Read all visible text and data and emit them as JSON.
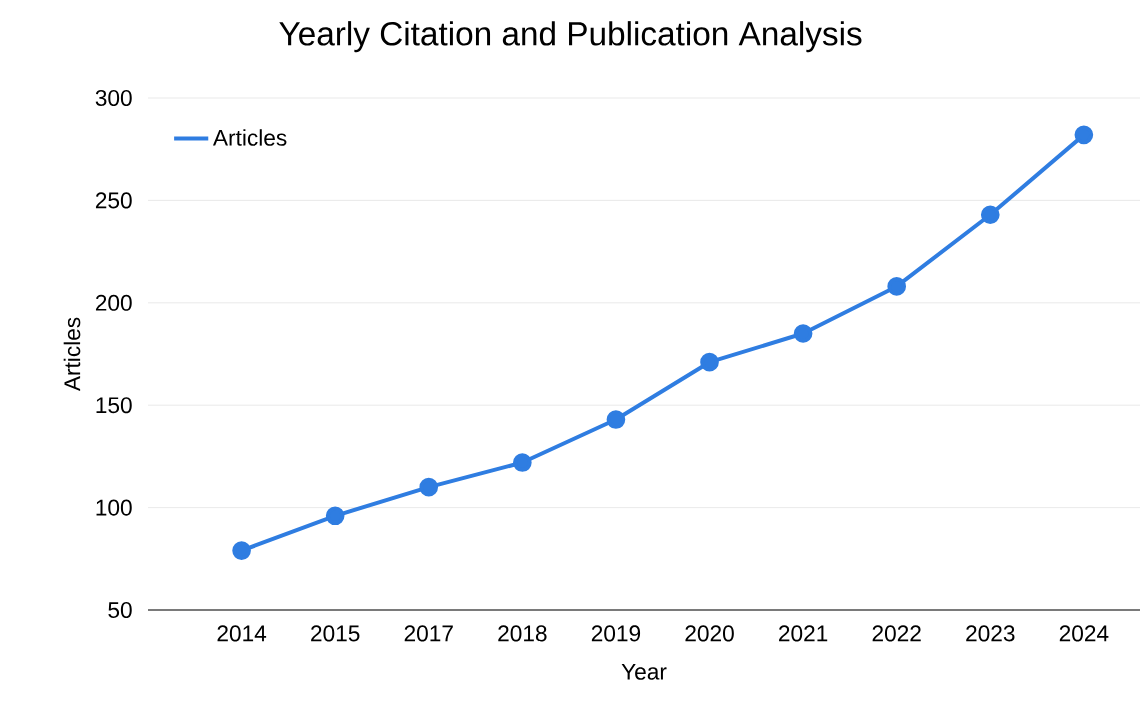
{
  "chart_data": {
    "type": "line",
    "title": "Yearly Citation and Publication Analysis",
    "xlabel": "Year",
    "ylabel": "Articles",
    "categories": [
      "2014",
      "2015",
      "2017",
      "2018",
      "2019",
      "2020",
      "2021",
      "2022",
      "2023",
      "2024"
    ],
    "series": [
      {
        "name": "Articles",
        "color": "#2f7de1",
        "values": [
          79,
          96,
          110,
          122,
          143,
          171,
          185,
          208,
          243,
          282
        ]
      }
    ],
    "ylim": [
      50,
      300
    ],
    "yticks": [
      50,
      100,
      150,
      200,
      250,
      300
    ],
    "grid": "y",
    "legend": "top left",
    "marker": "circle",
    "line_style": "solid"
  }
}
